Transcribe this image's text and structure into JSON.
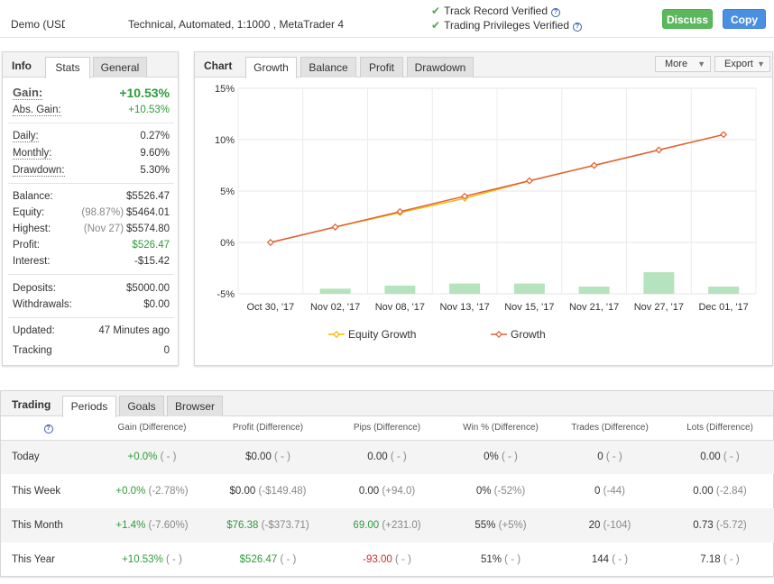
{
  "header": {
    "account_name": "Demo (USD",
    "account_desc": "Technical, Automated, 1:1000 , MetaTrader 4",
    "verifications": [
      "Track Record Verified",
      "Trading Privileges Verified"
    ],
    "discuss_label": "Discuss",
    "copy_label": "Copy"
  },
  "info": {
    "title": "Info",
    "tabs": [
      "Stats",
      "General"
    ],
    "gain_label": "Gain:",
    "gain_value": "+10.53%",
    "abs_gain_label": "Abs. Gain:",
    "abs_gain_value": "+10.53%",
    "daily_label": "Daily:",
    "daily_value": "0.27%",
    "monthly_label": "Monthly:",
    "monthly_value": "9.60%",
    "drawdown_label": "Drawdown:",
    "drawdown_value": "5.30%",
    "balance_label": "Balance:",
    "balance_value": "$5526.47",
    "equity_label": "Equity:",
    "equity_sub": "(98.87%)",
    "equity_value": "$5464.01",
    "highest_label": "Highest:",
    "highest_sub": "(Nov 27)",
    "highest_value": "$5574.80",
    "profit_label": "Profit:",
    "profit_value": "$526.47",
    "interest_label": "Interest:",
    "interest_value": "-$15.42",
    "deposits_label": "Deposits:",
    "deposits_value": "$5000.00",
    "withdrawals_label": "Withdrawals:",
    "withdrawals_value": "$0.00",
    "updated_label": "Updated:",
    "updated_value": "47 Minutes ago",
    "tracking_label": "Tracking",
    "tracking_value": "0"
  },
  "chart": {
    "title": "Chart",
    "tabs": [
      "Growth",
      "Balance",
      "Profit",
      "Drawdown"
    ],
    "more_label": "More",
    "export_label": "Export"
  },
  "chart_data": {
    "type": "line",
    "categories": [
      "Oct 30, '17",
      "Nov 02, '17",
      "Nov 08, '17",
      "Nov 13, '17",
      "Nov 15, '17",
      "Nov 21, '17",
      "Nov 27, '17",
      "Dec 01, '17"
    ],
    "y_ticks": [
      "15%",
      "10%",
      "5%",
      "0%",
      "-5%"
    ],
    "ylim": [
      -5,
      15
    ],
    "grid": true,
    "legend_position": "bottom",
    "series": [
      {
        "name": "Equity Growth",
        "color": "#f5b800",
        "values": [
          0,
          1.5,
          2.9,
          4.3,
          6.0,
          7.5,
          9.0,
          10.5
        ]
      },
      {
        "name": "Growth",
        "color": "#e0603a",
        "values": [
          0,
          1.5,
          3.0,
          4.5,
          6.0,
          7.5,
          9.0,
          10.5
        ]
      }
    ],
    "bars": {
      "color": "#b5e3bd",
      "values": [
        0,
        0.5,
        0.8,
        1.0,
        1.0,
        0.7,
        2.1,
        0.7
      ]
    }
  },
  "trading": {
    "title": "Trading",
    "tabs": [
      "Periods",
      "Goals",
      "Browser"
    ],
    "columns": [
      "Gain (Difference)",
      "Profit (Difference)",
      "Pips (Difference)",
      "Win % (Difference)",
      "Trades (Difference)",
      "Lots (Difference)"
    ],
    "rows": [
      {
        "period": "Today",
        "gain": "+0.0%",
        "gain_diff": "( - )",
        "profit": "$0.00",
        "profit_diff": "( - )",
        "pips": "0.00",
        "pips_diff": "( - )",
        "win": "0%",
        "win_diff": "( - )",
        "trades": "0",
        "trades_diff": "( - )",
        "lots": "0.00",
        "lots_diff": "( - )"
      },
      {
        "period": "This Week",
        "gain": "+0.0%",
        "gain_diff": "(-2.78%)",
        "profit": "$0.00",
        "profit_diff": "(-$149.48)",
        "pips": "0.00",
        "pips_diff": "(+94.0)",
        "win": "0%",
        "win_diff": "(-52%)",
        "trades": "0",
        "trades_diff": "(-44)",
        "lots": "0.00",
        "lots_diff": "(-2.84)"
      },
      {
        "period": "This Month",
        "gain": "+1.4%",
        "gain_diff": "(-7.60%)",
        "profit": "$76.38",
        "profit_diff": "(-$373.71)",
        "pips": "69.00",
        "pips_diff": "(+231.0)",
        "win": "55%",
        "win_diff": "(+5%)",
        "trades": "20",
        "trades_diff": "(-104)",
        "lots": "0.73",
        "lots_diff": "(-5.72)"
      },
      {
        "period": "This Year",
        "gain": "+10.53%",
        "gain_diff": "( - )",
        "profit": "$526.47",
        "profit_diff": "( - )",
        "pips": "-93.00",
        "pips_diff": "( - )",
        "win": "51%",
        "win_diff": "( - )",
        "trades": "144",
        "trades_diff": "( - )",
        "lots": "7.18",
        "lots_diff": "( - )"
      }
    ]
  }
}
